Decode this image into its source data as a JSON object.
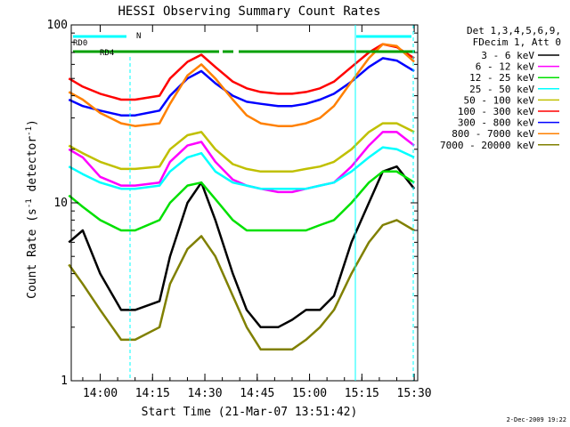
{
  "chart_data": {
    "type": "line",
    "title": "HESSI Observing Summary Count Rates",
    "xlabel": "Start Time (21-Mar-07 13:51:42)",
    "ylabel": "Count Rate (s",
    "ylabel_sup": "-1",
    "ylabel_end": " detector",
    "ylabel_sup2": "-1",
    "ylabel_close": ")",
    "y_scale": "log",
    "ylim": [
      1,
      100
    ],
    "xlim": [
      "13:51:42",
      "15:31:00"
    ],
    "x_ticks": [
      "14:00",
      "14:15",
      "14:30",
      "14:45",
      "15:00",
      "15:15",
      "15:30"
    ],
    "y_ticks": [
      "1",
      "10",
      "100"
    ],
    "legend_header": [
      "Det 1,3,4,5,6,9,",
      "FDecim 1, Att 0"
    ],
    "legend_position": "right, outside plot",
    "timestamp": "2-Dec-2009 19:22",
    "flags": [
      {
        "label": "RD0",
        "color": "#00ffff"
      },
      {
        "label": "N",
        "color": "#00ffff"
      },
      {
        "label": "RD4",
        "color": "#00a000"
      }
    ],
    "series": [
      {
        "name": "3 - 6 keV",
        "color": "#000000",
        "x": [
          "13:51",
          "13:55",
          "14:00",
          "14:06",
          "14:10",
          "14:17",
          "14:20",
          "14:25",
          "14:29",
          "14:33",
          "14:38",
          "14:42",
          "14:46",
          "14:51",
          "14:55",
          "14:59",
          "15:03",
          "15:07",
          "15:12",
          "15:17",
          "15:21",
          "15:25",
          "15:30"
        ],
        "y": [
          6.0,
          7.0,
          4.0,
          2.5,
          2.5,
          2.8,
          5.0,
          10.0,
          13.0,
          8.0,
          4.0,
          2.5,
          2.0,
          2.0,
          2.2,
          2.5,
          2.5,
          3.0,
          6.0,
          10.0,
          15.0,
          16.0,
          12.0
        ]
      },
      {
        "name": "6 - 12 keV",
        "color": "#ff00ff",
        "x": [
          "13:51",
          "13:55",
          "14:00",
          "14:06",
          "14:10",
          "14:17",
          "14:20",
          "14:25",
          "14:29",
          "14:33",
          "14:38",
          "14:42",
          "14:46",
          "14:51",
          "14:55",
          "14:59",
          "15:03",
          "15:07",
          "15:12",
          "15:17",
          "15:21",
          "15:25",
          "15:30"
        ],
        "y": [
          20.0,
          18.0,
          14.0,
          12.5,
          12.5,
          13.0,
          17.0,
          21.0,
          22.0,
          17.0,
          13.5,
          12.5,
          12.0,
          11.5,
          11.5,
          12.0,
          12.5,
          13.0,
          16.0,
          21.0,
          25.0,
          25.0,
          21.0
        ]
      },
      {
        "name": "12 - 25 keV",
        "color": "#00e000",
        "x": [
          "13:51",
          "13:55",
          "14:00",
          "14:06",
          "14:10",
          "14:17",
          "14:20",
          "14:25",
          "14:29",
          "14:33",
          "14:38",
          "14:42",
          "14:46",
          "14:51",
          "14:55",
          "14:59",
          "15:03",
          "15:07",
          "15:12",
          "15:17",
          "15:21",
          "15:25",
          "15:30"
        ],
        "y": [
          11.0,
          9.5,
          8.0,
          7.0,
          7.0,
          8.0,
          10.0,
          12.5,
          13.0,
          10.5,
          8.0,
          7.0,
          7.0,
          7.0,
          7.0,
          7.0,
          7.5,
          8.0,
          10.0,
          13.0,
          15.0,
          15.0,
          13.0
        ]
      },
      {
        "name": "25 - 50 keV",
        "color": "#00ffff",
        "x": [
          "13:51",
          "13:55",
          "14:00",
          "14:06",
          "14:10",
          "14:17",
          "14:20",
          "14:25",
          "14:29",
          "14:33",
          "14:38",
          "14:42",
          "14:46",
          "14:51",
          "14:55",
          "14:59",
          "15:03",
          "15:07",
          "15:12",
          "15:17",
          "15:21",
          "15:25",
          "15:30"
        ],
        "y": [
          16.0,
          14.5,
          13.0,
          12.0,
          12.0,
          12.5,
          15.0,
          18.0,
          19.0,
          15.0,
          13.0,
          12.5,
          12.0,
          12.0,
          12.0,
          12.0,
          12.5,
          13.0,
          15.0,
          18.0,
          20.5,
          20.0,
          18.0
        ]
      },
      {
        "name": "50 - 100 keV",
        "color": "#c0c000",
        "x": [
          "13:51",
          "13:55",
          "14:00",
          "14:06",
          "14:10",
          "14:17",
          "14:20",
          "14:25",
          "14:29",
          "14:33",
          "14:38",
          "14:42",
          "14:46",
          "14:51",
          "14:55",
          "14:59",
          "15:03",
          "15:07",
          "15:12",
          "15:17",
          "15:21",
          "15:25",
          "15:30"
        ],
        "y": [
          21.0,
          19.0,
          17.0,
          15.5,
          15.5,
          16.0,
          20.0,
          24.0,
          25.0,
          20.0,
          16.5,
          15.5,
          15.0,
          15.0,
          15.0,
          15.5,
          16.0,
          17.0,
          20.0,
          25.0,
          28.0,
          28.0,
          25.0
        ]
      },
      {
        "name": "100 - 300 keV",
        "color": "#ff0000",
        "x": [
          "13:51",
          "13:55",
          "14:00",
          "14:06",
          "14:10",
          "14:17",
          "14:20",
          "14:25",
          "14:29",
          "14:33",
          "14:38",
          "14:42",
          "14:46",
          "14:51",
          "14:55",
          "14:59",
          "15:03",
          "15:07",
          "15:12",
          "15:17",
          "15:21",
          "15:25",
          "15:30"
        ],
        "y": [
          50.0,
          45.0,
          41.0,
          38.0,
          38.0,
          40.0,
          50.0,
          62.0,
          68.0,
          58.0,
          48.0,
          44.0,
          42.0,
          41.0,
          41.0,
          42.0,
          44.0,
          48.0,
          58.0,
          70.0,
          78.0,
          75.0,
          65.0
        ]
      },
      {
        "name": "300 - 800 keV",
        "color": "#0000ff",
        "x": [
          "13:51",
          "13:55",
          "14:00",
          "14:06",
          "14:10",
          "14:17",
          "14:20",
          "14:25",
          "14:29",
          "14:33",
          "14:38",
          "14:42",
          "14:46",
          "14:51",
          "14:55",
          "14:59",
          "15:03",
          "15:07",
          "15:12",
          "15:17",
          "15:21",
          "15:25",
          "15:30"
        ],
        "y": [
          38.0,
          35.0,
          33.0,
          31.0,
          31.0,
          33.0,
          40.0,
          50.0,
          55.0,
          47.0,
          40.0,
          37.0,
          36.0,
          35.0,
          35.0,
          36.0,
          38.0,
          41.0,
          48.0,
          58.0,
          65.0,
          63.0,
          55.0
        ]
      },
      {
        "name": "800 - 7000 keV",
        "color": "#ff8000",
        "x": [
          "13:51",
          "13:55",
          "14:00",
          "14:06",
          "14:10",
          "14:17",
          "14:20",
          "14:25",
          "14:29",
          "14:33",
          "14:38",
          "14:42",
          "14:46",
          "14:51",
          "14:55",
          "14:59",
          "15:03",
          "15:07",
          "15:12",
          "15:17",
          "15:21",
          "15:25",
          "15:30"
        ],
        "y": [
          42.0,
          38.0,
          32.0,
          28.0,
          27.0,
          28.0,
          36.0,
          52.0,
          60.0,
          50.0,
          38.0,
          31.0,
          28.0,
          27.0,
          27.0,
          28.0,
          30.0,
          35.0,
          48.0,
          65.0,
          78.0,
          76.0,
          62.0
        ]
      },
      {
        "name": "7000 - 20000 keV",
        "color": "#808000",
        "x": [
          "13:51",
          "13:55",
          "14:00",
          "14:06",
          "14:10",
          "14:17",
          "14:20",
          "14:25",
          "14:29",
          "14:33",
          "14:38",
          "14:42",
          "14:46",
          "14:51",
          "14:55",
          "14:59",
          "15:03",
          "15:07",
          "15:12",
          "15:17",
          "15:21",
          "15:25",
          "15:30"
        ],
        "y": [
          4.5,
          3.5,
          2.5,
          1.7,
          1.7,
          2.0,
          3.5,
          5.5,
          6.5,
          5.0,
          3.0,
          2.0,
          1.5,
          1.5,
          1.5,
          1.7,
          2.0,
          2.5,
          4.0,
          6.0,
          7.5,
          8.0,
          7.0
        ]
      }
    ]
  }
}
